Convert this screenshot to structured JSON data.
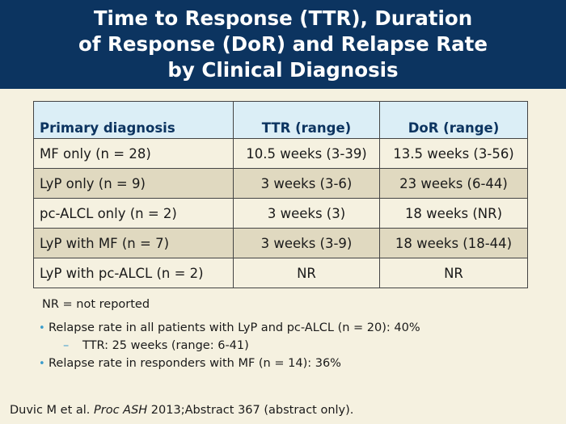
{
  "title": {
    "line1": "Time to Response (TTR), Duration",
    "line2": "of Response (DoR) and Relapse Rate",
    "line3": "by Clinical Diagnosis"
  },
  "table": {
    "headers": [
      "Primary diagnosis",
      "TTR (range)",
      "DoR (range)"
    ],
    "rows": [
      [
        "MF only (n = 28)",
        "10.5 weeks (3-39)",
        "13.5 weeks (3-56)"
      ],
      [
        "LyP only (n = 9)",
        "3 weeks (3-6)",
        "23 weeks (6-44)"
      ],
      [
        "pc-ALCL only (n = 2)",
        "3 weeks (3)",
        "18 weeks (NR)"
      ],
      [
        "LyP with MF (n = 7)",
        "3 weeks (3-9)",
        "18 weeks (18-44)"
      ],
      [
        "LyP with pc-ALCL (n = 2)",
        "NR",
        "NR"
      ]
    ]
  },
  "note": "NR = not reported",
  "bullets": [
    "Relapse rate in all patients with LyP and pc-ALCL (n = 20): 40%",
    "TTR: 25 weeks (range: 6-41)",
    "Relapse rate in responders with MF (n = 14): 36%"
  ],
  "citation": {
    "authors": "Duvic M et al. ",
    "journal": "Proc ASH",
    "rest": " 2013;Abstract 367 (abstract only)."
  },
  "colors": {
    "header_bg": "#0c3460",
    "background": "#f5f1e0",
    "table_header_bg": "#dbeef6",
    "row_alt_bg": "#e0d9c0",
    "bullet_accent": "#3a9ccc"
  }
}
